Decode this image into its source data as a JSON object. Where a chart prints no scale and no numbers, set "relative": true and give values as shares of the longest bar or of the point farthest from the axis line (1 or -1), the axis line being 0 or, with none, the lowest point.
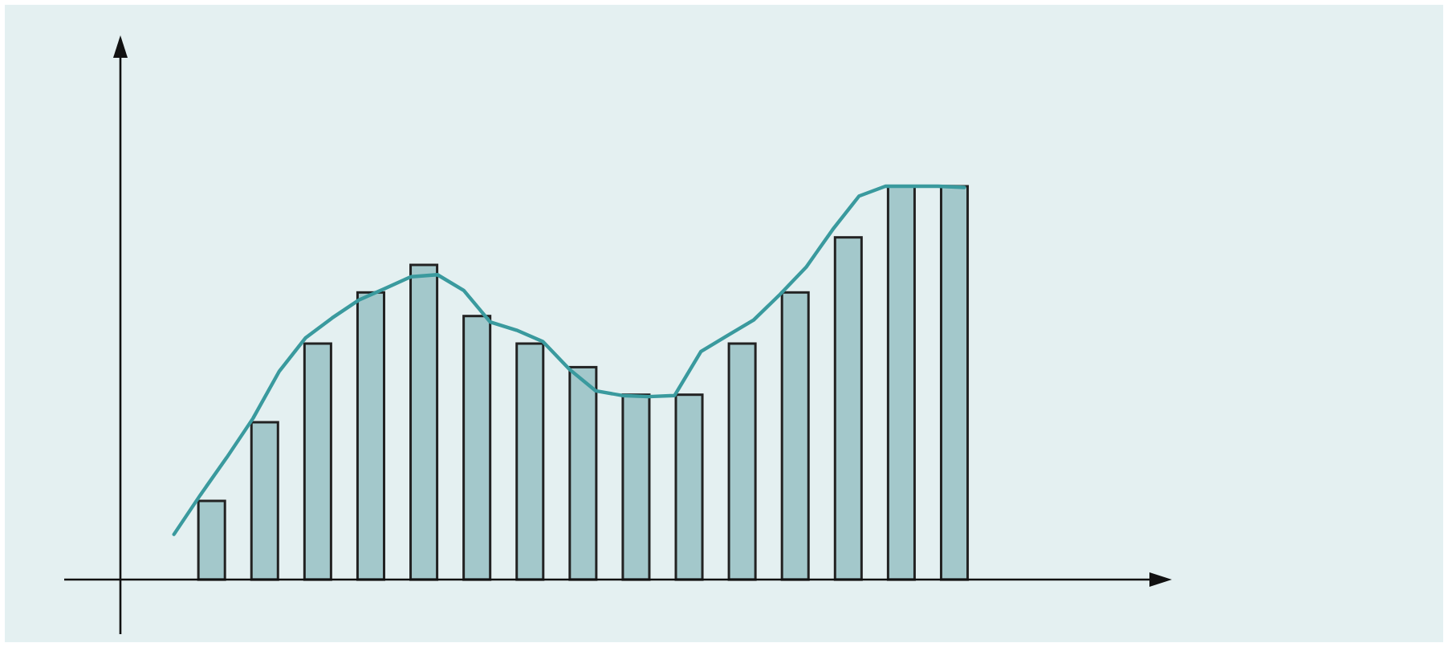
{
  "chart_data": [
    {
      "type": "bar",
      "relative": true,
      "categories": [
        null,
        null,
        null,
        null,
        null,
        null,
        null,
        null,
        null,
        null,
        null,
        null,
        null,
        null,
        null
      ],
      "color": "#a3c8cb",
      "values": [
        0.2,
        0.4,
        0.6,
        0.73,
        0.8,
        0.67,
        0.6,
        0.54,
        0.47,
        0.47,
        0.6,
        0.73,
        0.87,
        1,
        1
      ]
    },
    {
      "type": "line",
      "relative": true,
      "categories": [
        null,
        null,
        null,
        null,
        null,
        null,
        null,
        null,
        null,
        null,
        null,
        null,
        null,
        null,
        null,
        null,
        null,
        null,
        null,
        null,
        null,
        null,
        null,
        null,
        null,
        null,
        null,
        null,
        null,
        null,
        null
      ],
      "color": "#3a9a9e",
      "values": [
        0.115,
        0.215,
        0.31,
        0.41,
        0.53,
        0.615,
        0.665,
        0.71,
        0.74,
        0.77,
        0.775,
        0.735,
        0.655,
        0.634,
        0.605,
        0.535,
        0.48,
        0.468,
        0.465,
        0.468,
        0.58,
        0.62,
        0.66,
        0.725,
        0.795,
        0.89,
        0.975,
        1,
        1,
        1,
        0.997
      ]
    }
  ]
}
